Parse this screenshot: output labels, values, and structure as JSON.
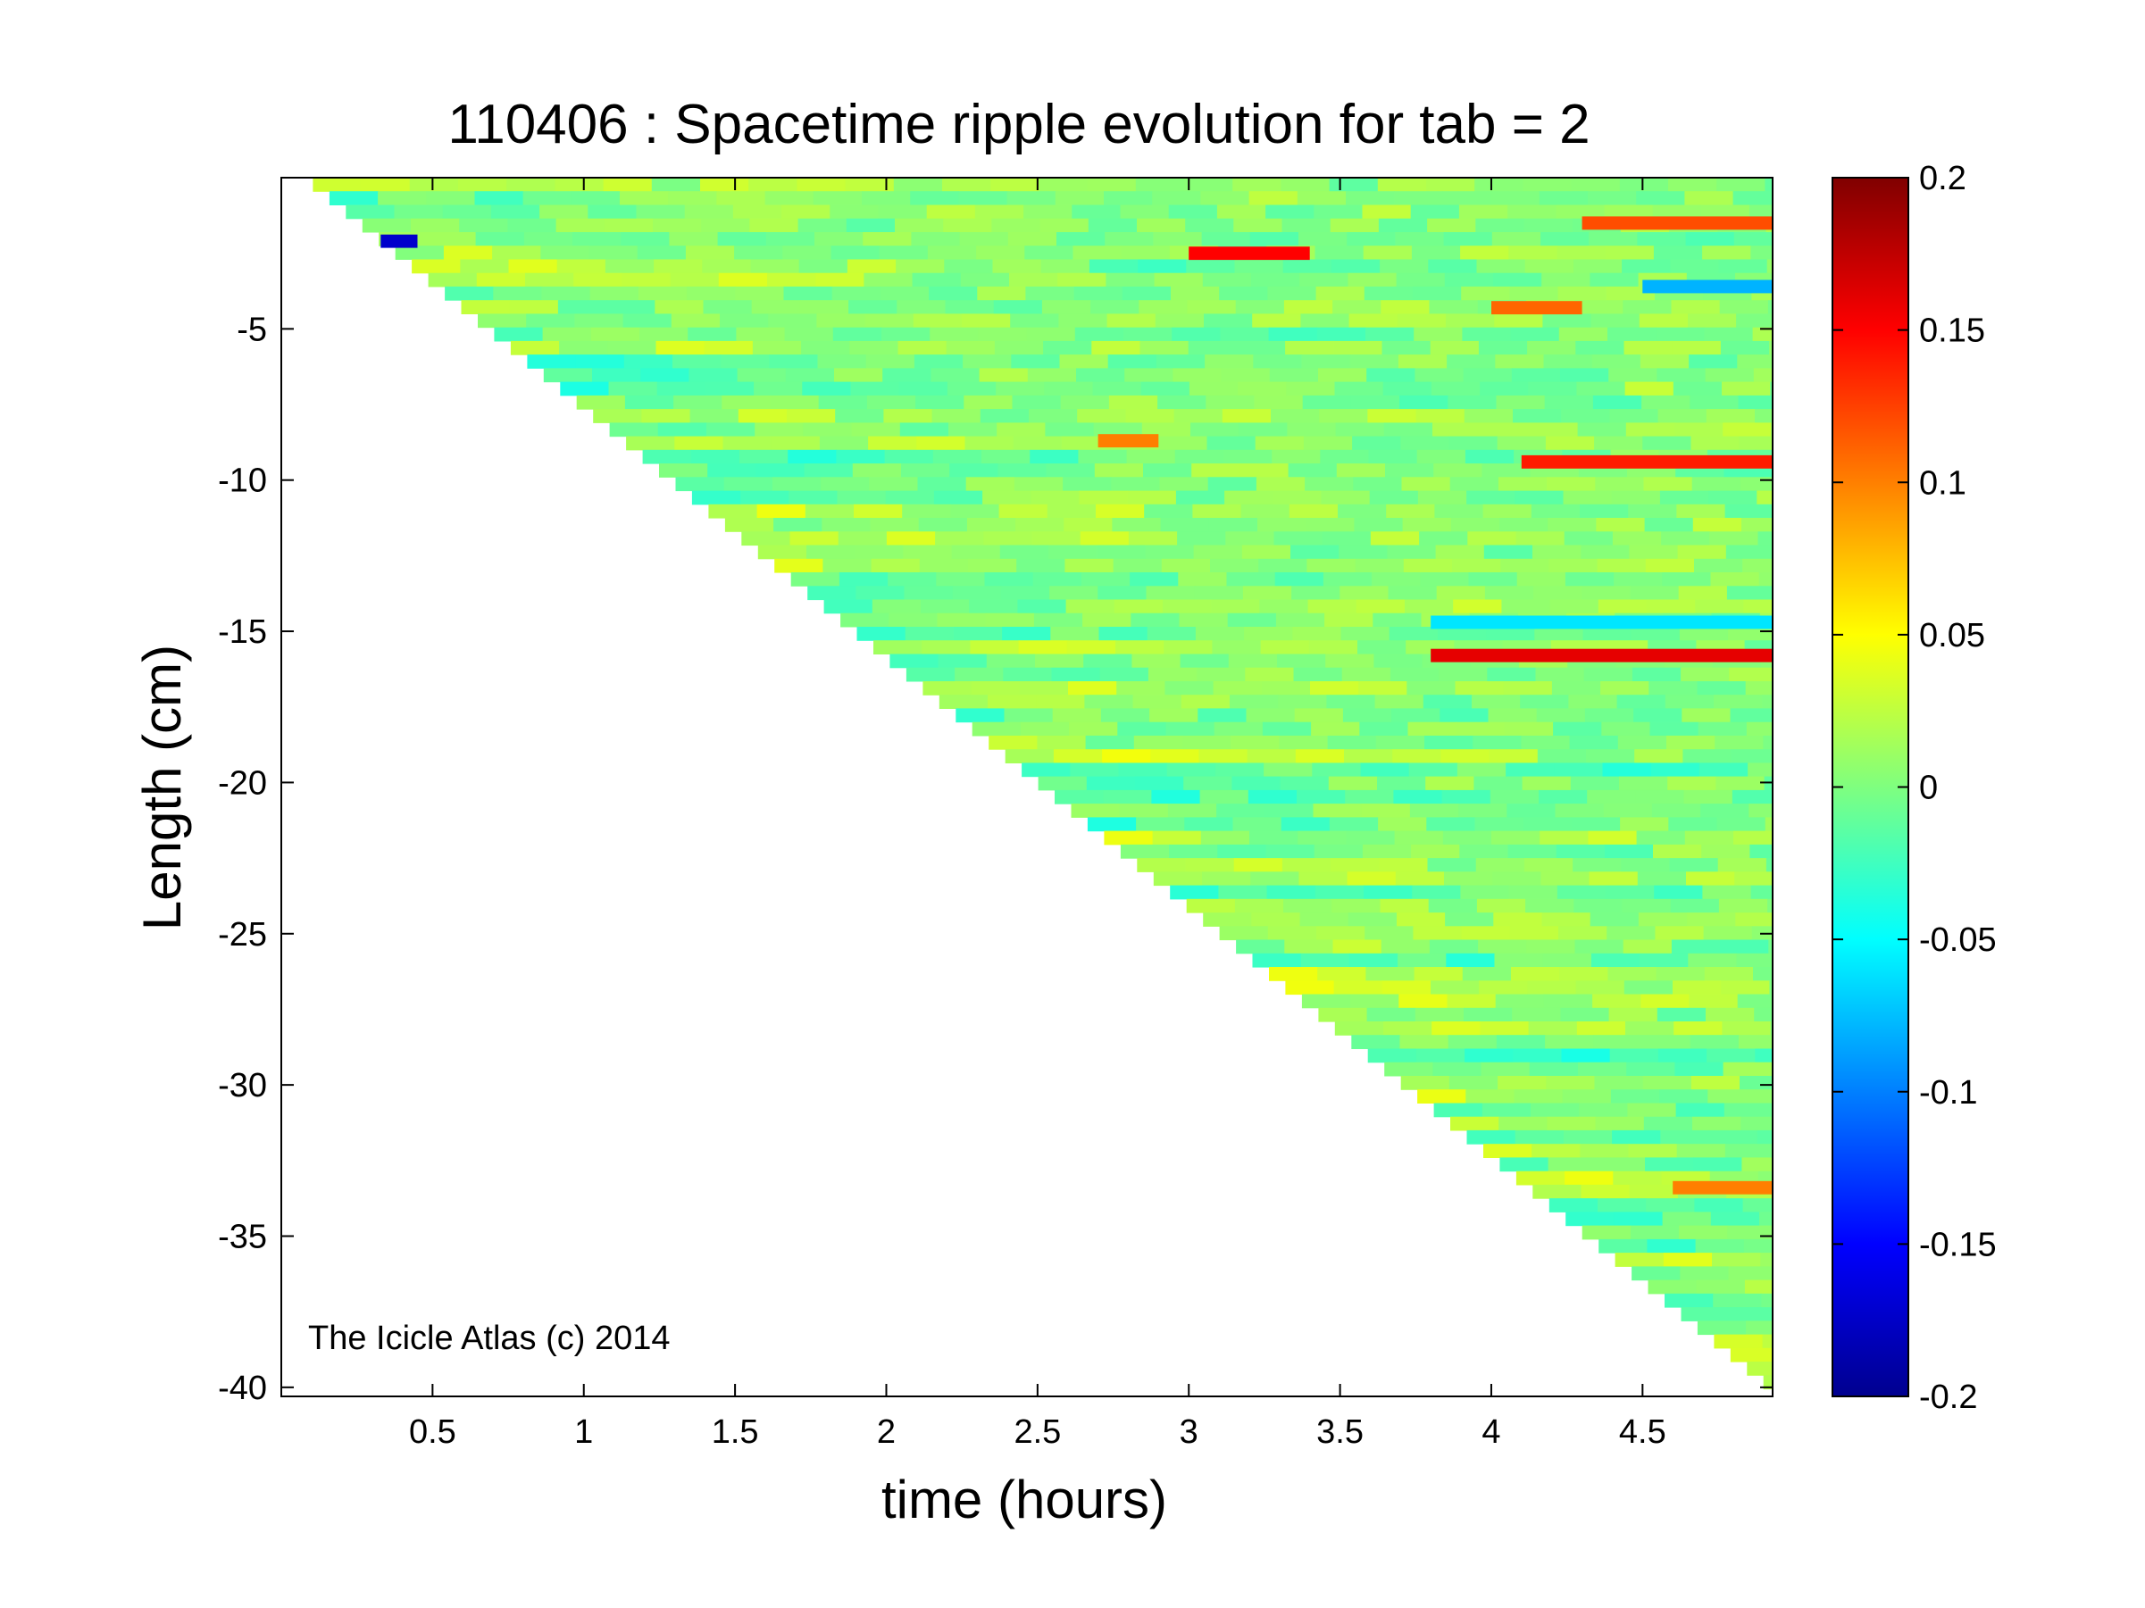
{
  "chart_data": {
    "type": "heatmap",
    "title": "110406 : Spacetime ripple evolution for tab = 2",
    "xlabel": "time (hours)",
    "ylabel": "Length (cm)",
    "xlim": [
      0,
      4.93
    ],
    "ylim": [
      -40.3,
      0
    ],
    "x_ticks": [
      "0.5",
      "1",
      "1.5",
      "2",
      "2.5",
      "3",
      "3.5",
      "4",
      "4.5"
    ],
    "x_tick_values": [
      0.5,
      1,
      1.5,
      2,
      2.5,
      3,
      3.5,
      4,
      4.5
    ],
    "y_ticks": [
      "-5",
      "-10",
      "-15",
      "-20",
      "-25",
      "-30",
      "-35",
      "-40"
    ],
    "y_tick_values": [
      -5,
      -10,
      -15,
      -20,
      -25,
      -30,
      -35,
      -40
    ],
    "colormap": "jet",
    "colorbar": {
      "range": [
        -0.2,
        0.2
      ],
      "tick_values": [
        0.2,
        0.15,
        0.1,
        0.05,
        0,
        -0.05,
        -0.1,
        -0.15,
        -0.2
      ],
      "tick_labels": [
        "0.2",
        "0.15",
        "0.1",
        "0.05",
        "0",
        "-0.05",
        "-0.1",
        "-0.15",
        "-0.2"
      ]
    },
    "data_extent": {
      "description": "Data exists only where length >= -(length grows linearly with time); lower-left triangle is empty",
      "front_points": [
        [
          0.05,
          0
        ],
        [
          4.93,
          -40.3
        ]
      ]
    },
    "features": [
      {
        "t_start": 3.0,
        "t_end": 3.4,
        "length": -2.5,
        "value": 0.15
      },
      {
        "t_start": 0.22,
        "t_end": 0.45,
        "length": -2.1,
        "value": -0.17
      },
      {
        "t_start": 3.8,
        "t_end": 4.93,
        "length": -15.8,
        "value": 0.16
      },
      {
        "t_start": 4.1,
        "t_end": 4.93,
        "length": -9.4,
        "value": 0.14
      },
      {
        "t_start": 4.3,
        "t_end": 4.93,
        "length": -1.5,
        "value": 0.12
      },
      {
        "t_start": 4.5,
        "t_end": 4.93,
        "length": -3.6,
        "value": -0.08
      },
      {
        "t_start": 4.0,
        "t_end": 4.3,
        "length": -4.3,
        "value": 0.11
      },
      {
        "t_start": 3.8,
        "t_end": 4.93,
        "length": -14.7,
        "value": -0.06
      },
      {
        "t_start": 2.7,
        "t_end": 2.9,
        "length": -8.7,
        "value": 0.1
      },
      {
        "t_start": 4.6,
        "t_end": 4.93,
        "length": -33.4,
        "value": 0.1
      }
    ],
    "annotation": "The Icicle Atlas (c) 2014",
    "grid": false,
    "legend": "none"
  }
}
